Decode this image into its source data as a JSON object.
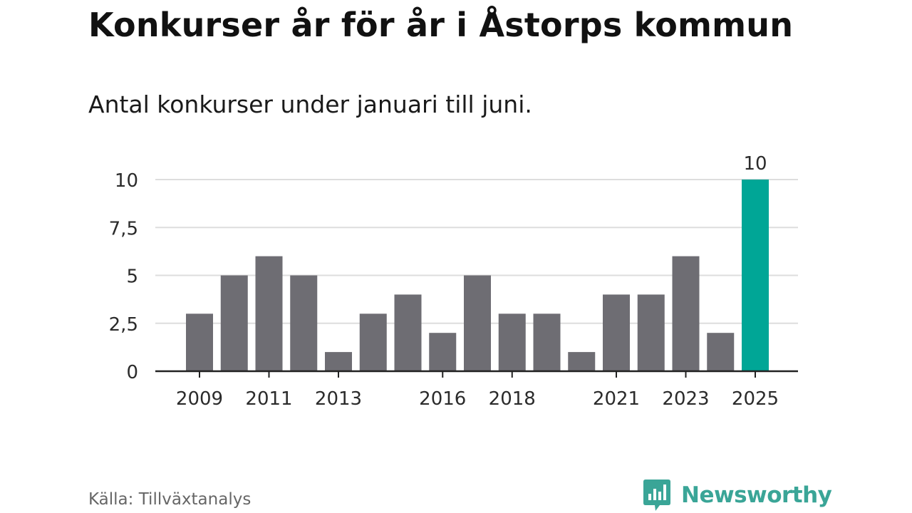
{
  "title": "Konkurser år för år i Åstorps kommun",
  "subtitle": "Antal konkurser under januari till juni.",
  "source": "Källa: Tillväxtanalys",
  "brand": {
    "name": "Newsworthy",
    "icon": "newsworthy-logo-icon",
    "color": "#3aa597"
  },
  "colors": {
    "bar": "#6e6d73",
    "highlight": "#00a696",
    "grid": "#dddddd",
    "axis": "#222222"
  },
  "chart_data": {
    "type": "bar",
    "categories": [
      "2009",
      "2010",
      "2011",
      "2012",
      "2013",
      "2014",
      "2015",
      "2016",
      "2017",
      "2018",
      "2019",
      "2020",
      "2021",
      "2022",
      "2023",
      "2024",
      "2025"
    ],
    "values": [
      3,
      5,
      6,
      5,
      1,
      3,
      4,
      2,
      5,
      3,
      3,
      1,
      4,
      4,
      6,
      2,
      10
    ],
    "x_tick_labels": [
      "2009",
      "2011",
      "2013",
      "2016",
      "2018",
      "2021",
      "2023",
      "2025"
    ],
    "y_tick_labels": [
      "0",
      "2,5",
      "5",
      "7,5",
      "10"
    ],
    "y_ticks": [
      0,
      2.5,
      5,
      7.5,
      10
    ],
    "ylim": [
      0,
      10
    ],
    "highlight_category": "2025",
    "data_labels": [
      {
        "category": "2025",
        "text": "10"
      }
    ],
    "grid": true,
    "legend": "none"
  }
}
